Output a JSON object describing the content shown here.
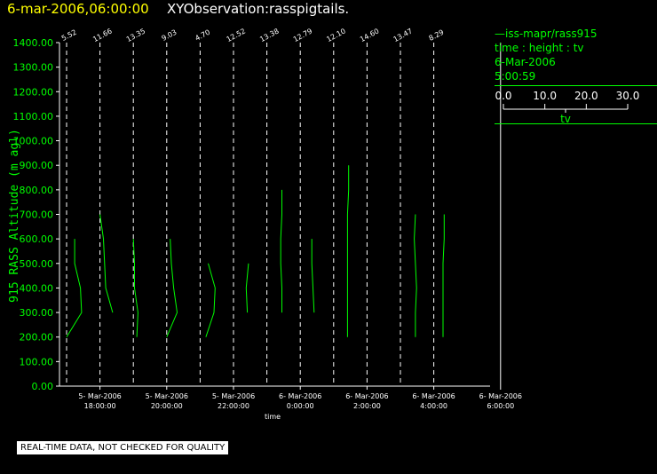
{
  "header": {
    "date_label": "6-mar-2006,06:00:00",
    "title": "XYObservation:rasspigtails."
  },
  "legend": {
    "series_line": "—iss-mapr/rass915",
    "axes_line": "time : height : tv",
    "date_line": "6-Mar-2006",
    "time_line": "5:00:59",
    "scale_ticks": [
      "0.0",
      "10.0",
      "20.0",
      "30.0"
    ],
    "scale_label": "tv"
  },
  "footer": {
    "warning": "REAL-TIME DATA, NOT CHECKED FOR QUALITY"
  },
  "colors": {
    "background": "#000000",
    "series": "#00ff00",
    "axes": "#ffffff",
    "date_title": "#ffff00"
  },
  "chart_data": {
    "type": "line",
    "title": "XYObservation:rasspigtails.",
    "xlabel": "time",
    "ylabel": "915 RASS Altitude (m agl)",
    "ylim": [
      0,
      1400
    ],
    "yticks": [
      "0.00",
      "100.00",
      "200.00",
      "300.00",
      "400.00",
      "500.00",
      "600.00",
      "700.00",
      "800.00",
      "900.00",
      "1000.00",
      "1100.00",
      "1200.00",
      "1300.00",
      "1400.00"
    ],
    "xlim": [
      "2006-03-05 17:00",
      "2006-03-06 06:00"
    ],
    "xticks": [
      {
        "date": "5- Mar-2006",
        "time": "18:00:00"
      },
      {
        "date": "5- Mar-2006",
        "time": "20:00:00"
      },
      {
        "date": "5- Mar-2006",
        "time": "22:00:00"
      },
      {
        "date": "6- Mar-2006",
        "time": "0:00:00"
      },
      {
        "date": "6- Mar-2006",
        "time": "2:00:00"
      },
      {
        "date": "6- Mar-2006",
        "time": "4:00:00"
      },
      {
        "date": "6- Mar-2006",
        "time": "6:00:00"
      }
    ],
    "grid": "dashed vertical line at each profile time",
    "tv_scale": [
      0,
      30
    ],
    "profiles": [
      {
        "time": "2006-03-05 17:00",
        "tv_label": "5.52",
        "points": [
          [
            0,
            200
          ],
          [
            13,
            300
          ],
          [
            12,
            400
          ],
          [
            7,
            500
          ],
          [
            7,
            600
          ]
        ]
      },
      {
        "time": "2006-03-05 18:00",
        "tv_label": "11.66",
        "points": [
          [
            11,
            300
          ],
          [
            5,
            400
          ],
          [
            4,
            500
          ],
          [
            3,
            600
          ],
          [
            0,
            700
          ]
        ]
      },
      {
        "time": "2006-03-05 19:00",
        "tv_label": "13.35",
        "points": [
          [
            3,
            200
          ],
          [
            4,
            300
          ],
          [
            1,
            400
          ],
          [
            1,
            500
          ],
          [
            0,
            600
          ]
        ]
      },
      {
        "time": "2006-03-05 20:00",
        "tv_label": "9.03",
        "points": [
          [
            0,
            200
          ],
          [
            9,
            300
          ],
          [
            6,
            400
          ],
          [
            4,
            500
          ],
          [
            3,
            600
          ]
        ]
      },
      {
        "time": "2006-03-05 21:00",
        "tv_label": "4.70",
        "points": [
          [
            5,
            200
          ],
          [
            12,
            300
          ],
          [
            13,
            400
          ],
          [
            7,
            500
          ]
        ]
      },
      {
        "time": "2006-03-05 22:00",
        "tv_label": "12.52",
        "points": [
          [
            12,
            300
          ],
          [
            11,
            400
          ],
          [
            13,
            500
          ]
        ]
      },
      {
        "time": "2006-03-05 23:00",
        "tv_label": "13.38",
        "points": [
          [
            13,
            300
          ],
          [
            13,
            400
          ],
          [
            12,
            500
          ],
          [
            12,
            600
          ],
          [
            13,
            700
          ],
          [
            13,
            800
          ]
        ]
      },
      {
        "time": "2006-03-06 00:00",
        "tv_label": "12.79",
        "points": [
          [
            12,
            300
          ],
          [
            11,
            400
          ],
          [
            10,
            500
          ],
          [
            10,
            600
          ]
        ]
      },
      {
        "time": "2006-03-06 01:00",
        "tv_label": "12.10",
        "points": [
          [
            12,
            200
          ],
          [
            12,
            300
          ],
          [
            12,
            400
          ],
          [
            12,
            500
          ],
          [
            12,
            600
          ],
          [
            12,
            700
          ],
          [
            13,
            800
          ],
          [
            13,
            900
          ]
        ]
      },
      {
        "time": "2006-03-06 02:00",
        "tv_label": "14.60",
        "points": []
      },
      {
        "time": "2006-03-06 03:00",
        "tv_label": "13.47",
        "points": [
          [
            13,
            200
          ],
          [
            13,
            300
          ],
          [
            14,
            400
          ],
          [
            13,
            500
          ],
          [
            12,
            600
          ],
          [
            13,
            700
          ]
        ]
      },
      {
        "time": "2006-03-06 04:00",
        "tv_label": "8.29",
        "points": [
          [
            8,
            200
          ],
          [
            8,
            300
          ],
          [
            8,
            400
          ],
          [
            8,
            500
          ],
          [
            9,
            600
          ],
          [
            9,
            700
          ]
        ]
      }
    ]
  }
}
